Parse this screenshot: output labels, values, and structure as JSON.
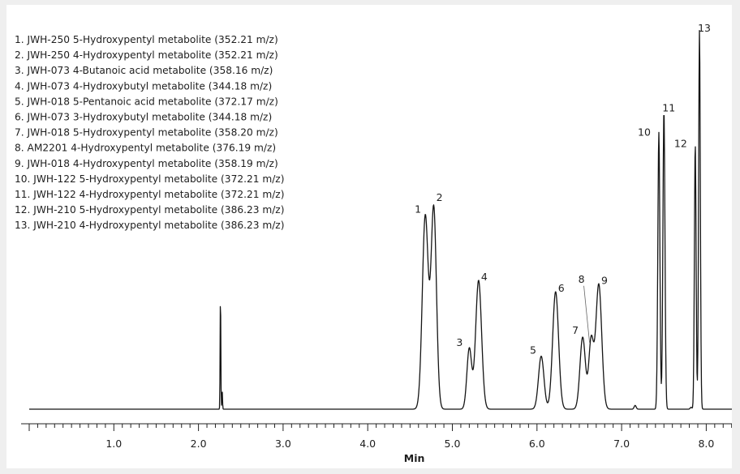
{
  "chart_data": {
    "type": "line",
    "xlabel": "Min",
    "ylabel": "",
    "xlim": [
      0,
      8.5
    ],
    "ylim": [
      0,
      1
    ],
    "grid": false,
    "x_ticks": [
      "1.0",
      "2.0",
      "3.0",
      "4.0",
      "5.0",
      "6.0",
      "7.0",
      "8.0"
    ],
    "x_tick_values": [
      1.0,
      2.0,
      3.0,
      4.0,
      5.0,
      6.0,
      7.0,
      8.0
    ],
    "minor_tick_step": 0.1,
    "legend_position": "top-left",
    "legend": [
      "1. JWH-250 5-Hydroxypentyl metabolite (352.21 m/z)",
      "2. JWH-250 4-Hydroxypentyl metabolite (352.21 m/z)",
      "3. JWH-073 4-Butanoic acid metabolite (358.16 m/z)",
      "4. JWH-073 4-Hydroxybutyl metabolite (344.18 m/z)",
      "5. JWH-018 5-Pentanoic acid metabolite (372.17 m/z)",
      "6. JWH-073 3-Hydroxybutyl metabolite (344.18 m/z)",
      "7. JWH-018 5-Hydroxypentyl metabolite (358.20 m/z)",
      "8. AM2201 4-Hydroxypentyl metabolite (376.19 m/z)",
      "9. JWH-018 4-Hydroxypentyl metabolite (358.19 m/z)",
      "10. JWH-122 5-Hydroxypentyl metabolite (372.21 m/z)",
      "11. JWH-122 4-Hydroxypentyl metabolite (372.21 m/z)",
      "12. JWH-210 5-Hydroxypentyl metabolite (386.23 m/z)",
      "13. JWH-210 4-Hydroxypentyl metabolite (386.23 m/z)"
    ],
    "peaks": [
      {
        "label": "1",
        "x": 4.68,
        "y": 0.51,
        "width": 0.035
      },
      {
        "label": "2",
        "x": 4.78,
        "y": 0.53,
        "width": 0.032
      },
      {
        "label": "3",
        "x": 5.2,
        "y": 0.16,
        "width": 0.028
      },
      {
        "label": "4",
        "x": 5.31,
        "y": 0.34,
        "width": 0.035
      },
      {
        "label": "5",
        "x": 6.05,
        "y": 0.14,
        "width": 0.032
      },
      {
        "label": "6",
        "x": 6.22,
        "y": 0.31,
        "width": 0.035
      },
      {
        "label": "7",
        "x": 6.54,
        "y": 0.19,
        "width": 0.032
      },
      {
        "label": "8",
        "x": 6.64,
        "y": 0.18,
        "width": 0.028
      },
      {
        "label": "9",
        "x": 6.73,
        "y": 0.33,
        "width": 0.035
      },
      {
        "label": "10",
        "x": 7.44,
        "y": 0.73,
        "width": 0.012
      },
      {
        "label": "11",
        "x": 7.5,
        "y": 0.79,
        "width": 0.012
      },
      {
        "label": "12",
        "x": 7.87,
        "y": 0.7,
        "width": 0.01
      },
      {
        "label": "13",
        "x": 7.92,
        "y": 1.0,
        "width": 0.01
      }
    ],
    "minor_features": [
      {
        "x": 2.26,
        "y": 0.31,
        "width": 0.004
      },
      {
        "x": 2.28,
        "y": 0.05,
        "width": 0.004
      },
      {
        "x": 7.16,
        "y": 0.01,
        "width": 0.012
      },
      {
        "x": 7.82,
        "y": 0.005,
        "width": 0.01
      }
    ]
  }
}
